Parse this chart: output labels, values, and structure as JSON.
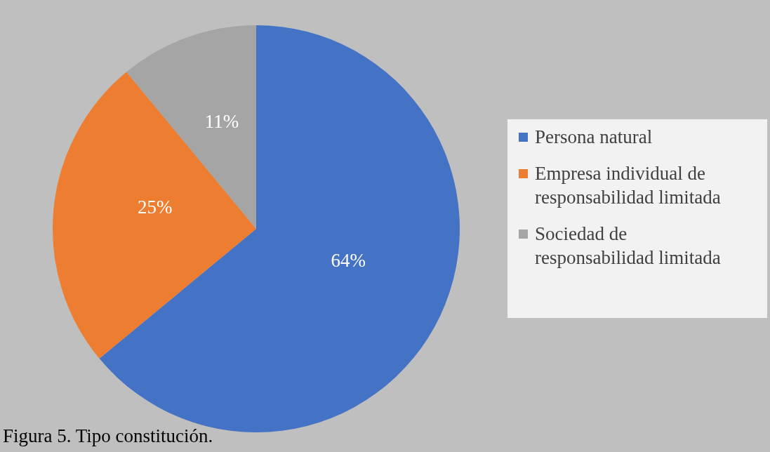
{
  "chart_data": {
    "type": "pie",
    "categories": [
      "Persona natural",
      "Empresa individual de responsabilidad limitada",
      "Sociedad de responsabilidad limitada"
    ],
    "values": [
      64,
      25,
      11
    ],
    "colors": [
      "#4472c4",
      "#ed7d31",
      "#a5a5a5"
    ],
    "value_labels": [
      "64%",
      "25%",
      "11%"
    ],
    "legend": "right",
    "annotations": [
      "Figura 5. Tipo constitución."
    ]
  }
}
